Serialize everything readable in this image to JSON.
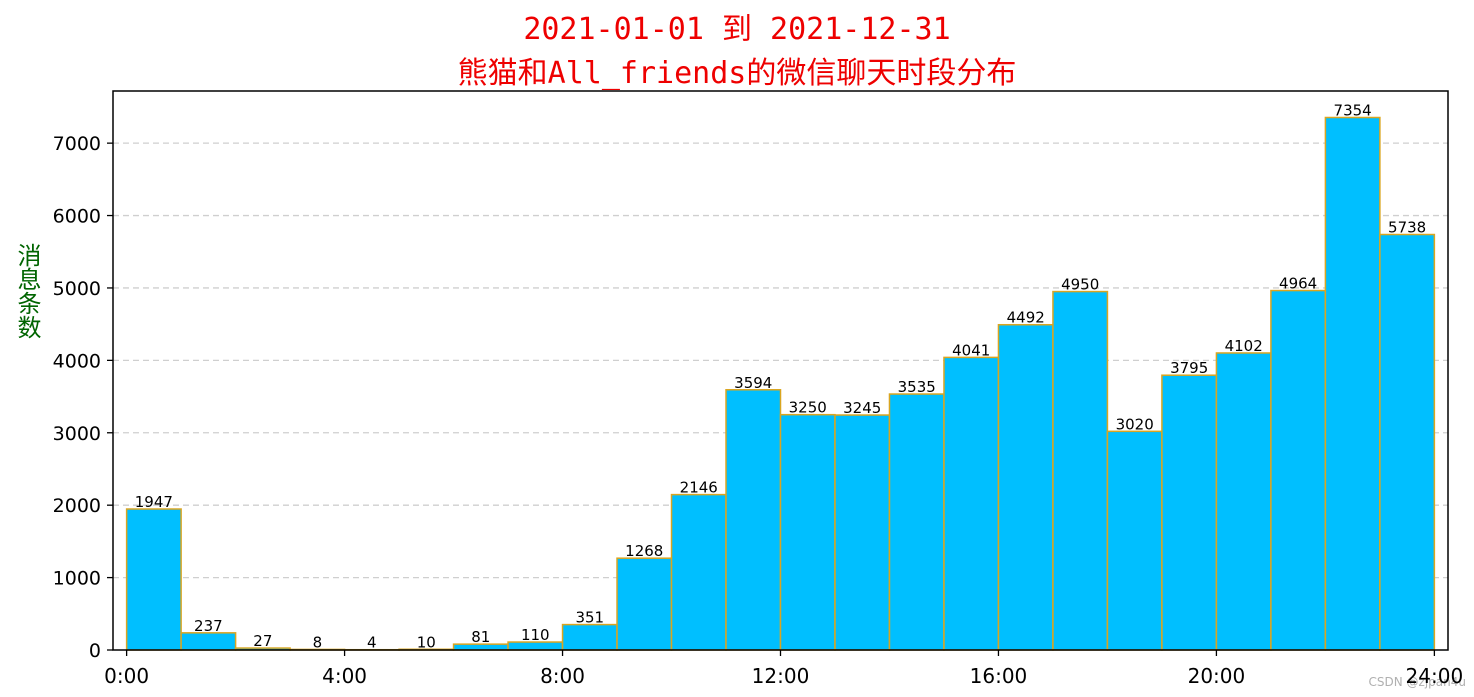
{
  "chart_data": {
    "type": "bar",
    "title_line1": "2021-01-01 到 2021-12-31",
    "title_line2": "熊猫和All_friends的微信聊天时段分布",
    "ylabel": "消息条数",
    "xlabel": "",
    "categories": [
      "0:00",
      "1:00",
      "2:00",
      "3:00",
      "4:00",
      "5:00",
      "6:00",
      "7:00",
      "8:00",
      "9:00",
      "10:00",
      "11:00",
      "12:00",
      "13:00",
      "14:00",
      "15:00",
      "16:00",
      "17:00",
      "18:00",
      "19:00",
      "20:00",
      "21:00",
      "22:00",
      "23:00"
    ],
    "values": [
      1947,
      237,
      27,
      8,
      4,
      10,
      81,
      110,
      351,
      1268,
      2146,
      3594,
      3250,
      3245,
      3535,
      4041,
      4492,
      4950,
      3020,
      3795,
      4102,
      4964,
      7354,
      5738
    ],
    "xlim": [
      -0.25,
      24.25
    ],
    "ylim": [
      0,
      7720
    ],
    "xticks": [
      0,
      4,
      8,
      12,
      16,
      20,
      24
    ],
    "xtick_labels": [
      "0:00",
      "4:00",
      "8:00",
      "12:00",
      "16:00",
      "20:00",
      "24:00"
    ],
    "yticks": [
      0,
      1000,
      2000,
      3000,
      4000,
      5000,
      6000,
      7000
    ],
    "grid": "y-dashed",
    "bar_color": "#00bfff",
    "edge_color": "#daa520",
    "title_color": "#ee0000",
    "ylabel_color": "#006400"
  },
  "watermark": "CSDN @zjpan4u"
}
